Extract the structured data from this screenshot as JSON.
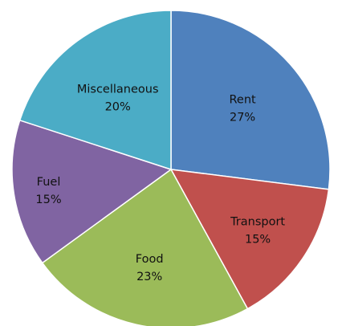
{
  "chart_data": {
    "type": "pie",
    "slices": [
      {
        "label": "Rent",
        "value": 27,
        "value_label": "27%",
        "color": "#4F81BD"
      },
      {
        "label": "Transport",
        "value": 15,
        "value_label": "15%",
        "color": "#C0504D"
      },
      {
        "label": "Food",
        "value": 23,
        "value_label": "23%",
        "color": "#9BBB59"
      },
      {
        "label": "Fuel",
        "value": 15,
        "value_label": "15%",
        "color": "#8064A2"
      },
      {
        "label": "Miscellaneous",
        "value": 20,
        "value_label": "20%",
        "color": "#4BACC6"
      }
    ],
    "start": "12 o'clock",
    "direction": "clockwise",
    "legend": "none"
  }
}
